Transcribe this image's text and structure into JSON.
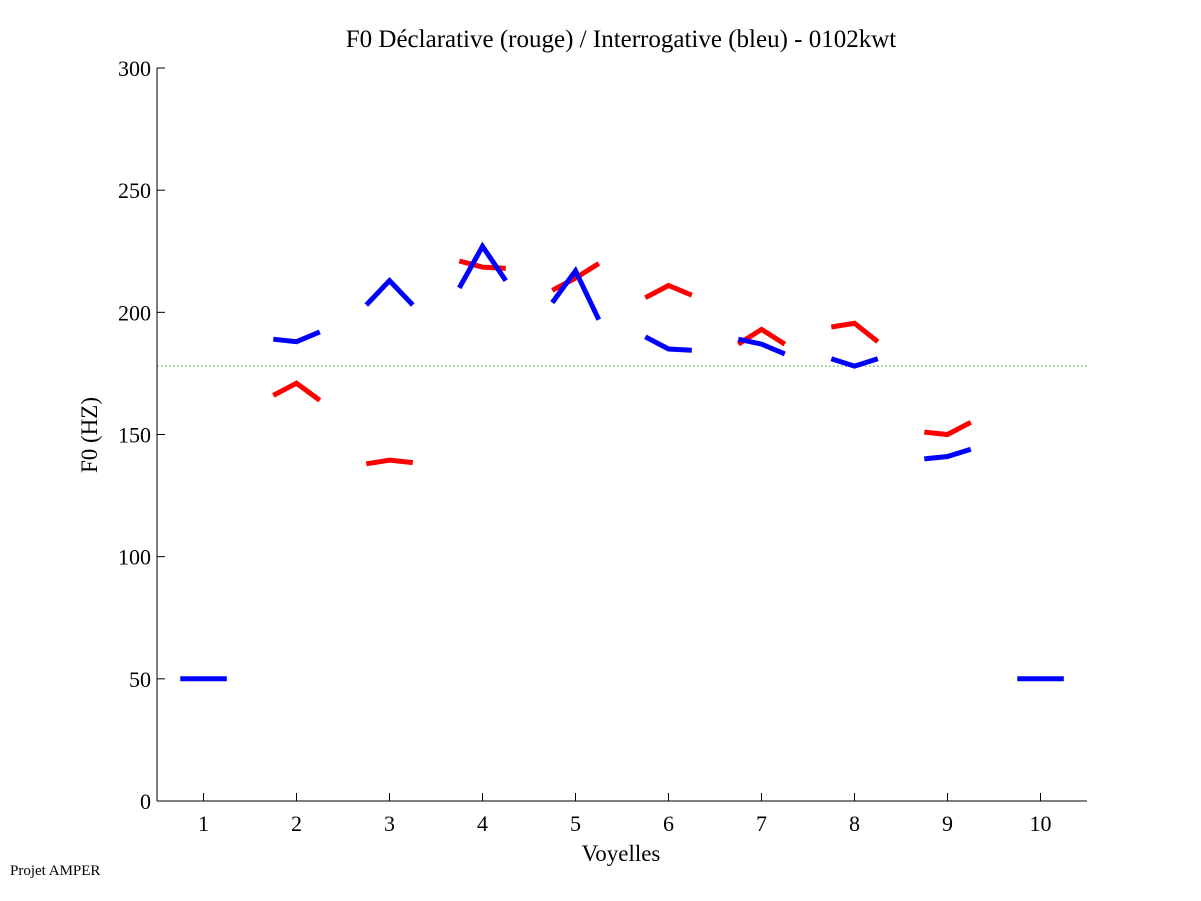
{
  "chart_data": {
    "type": "line",
    "title": "F0 Déclarative (rouge) / Interrogative (bleu) - 0102kwt",
    "xlabel": "Voyelles",
    "ylabel": "F0 (HZ)",
    "xlim": [
      0.5,
      10.5
    ],
    "ylim": [
      0,
      300
    ],
    "x_ticks": [
      1,
      2,
      3,
      4,
      5,
      6,
      7,
      8,
      9,
      10
    ],
    "x_tick_labels": [
      "1",
      "2",
      "3",
      "4",
      "5",
      "6",
      "7",
      "8",
      "9",
      "10"
    ],
    "y_ticks": [
      0,
      50,
      100,
      150,
      200,
      250,
      300
    ],
    "y_tick_labels": [
      "0",
      "50",
      "100",
      "150",
      "200",
      "250",
      "300"
    ],
    "reference_line": {
      "value": 178,
      "color": "#2ca02c",
      "style": "dotted"
    },
    "series": [
      {
        "name": "Déclarative (rouge)",
        "color": "#ff0000",
        "segments": [
          [
            [
              1.75,
              166
            ],
            [
              2.0,
              171
            ],
            [
              2.25,
              164
            ]
          ],
          [
            [
              2.75,
              138
            ],
            [
              3.0,
              139.5
            ],
            [
              3.25,
              138.5
            ]
          ],
          [
            [
              3.75,
              221
            ],
            [
              4.0,
              218.5
            ],
            [
              4.25,
              218
            ]
          ],
          [
            [
              4.75,
              209
            ],
            [
              5.0,
              214
            ],
            [
              5.25,
              220
            ]
          ],
          [
            [
              5.75,
              206
            ],
            [
              6.0,
              211
            ],
            [
              6.25,
              207
            ]
          ],
          [
            [
              6.75,
              187
            ],
            [
              7.0,
              193
            ],
            [
              7.25,
              187
            ]
          ],
          [
            [
              7.75,
              194
            ],
            [
              8.0,
              195.5
            ],
            [
              8.25,
              188
            ]
          ],
          [
            [
              8.75,
              151
            ],
            [
              9.0,
              150
            ],
            [
              9.25,
              155
            ]
          ]
        ]
      },
      {
        "name": "Interrogative (bleu)",
        "color": "#0000ff",
        "segments": [
          [
            [
              0.75,
              50
            ],
            [
              1.0,
              50
            ],
            [
              1.25,
              50
            ]
          ],
          [
            [
              1.75,
              189
            ],
            [
              2.0,
              188
            ],
            [
              2.25,
              192
            ]
          ],
          [
            [
              2.75,
              203
            ],
            [
              3.0,
              213
            ],
            [
              3.25,
              203
            ]
          ],
          [
            [
              3.75,
              210
            ],
            [
              4.0,
              227
            ],
            [
              4.25,
              213
            ]
          ],
          [
            [
              4.75,
              204
            ],
            [
              5.0,
              217
            ],
            [
              5.25,
              197
            ]
          ],
          [
            [
              5.75,
              190
            ],
            [
              6.0,
              185
            ],
            [
              6.25,
              184.5
            ]
          ],
          [
            [
              6.75,
              189
            ],
            [
              7.0,
              187
            ],
            [
              7.25,
              183
            ]
          ],
          [
            [
              7.75,
              181
            ],
            [
              8.0,
              178
            ],
            [
              8.25,
              181
            ]
          ],
          [
            [
              8.75,
              140
            ],
            [
              9.0,
              141
            ],
            [
              9.25,
              144
            ]
          ],
          [
            [
              9.75,
              50
            ],
            [
              10.0,
              50
            ],
            [
              10.25,
              50
            ]
          ]
        ]
      }
    ]
  },
  "footer": {
    "text": "Projet AMPER"
  }
}
